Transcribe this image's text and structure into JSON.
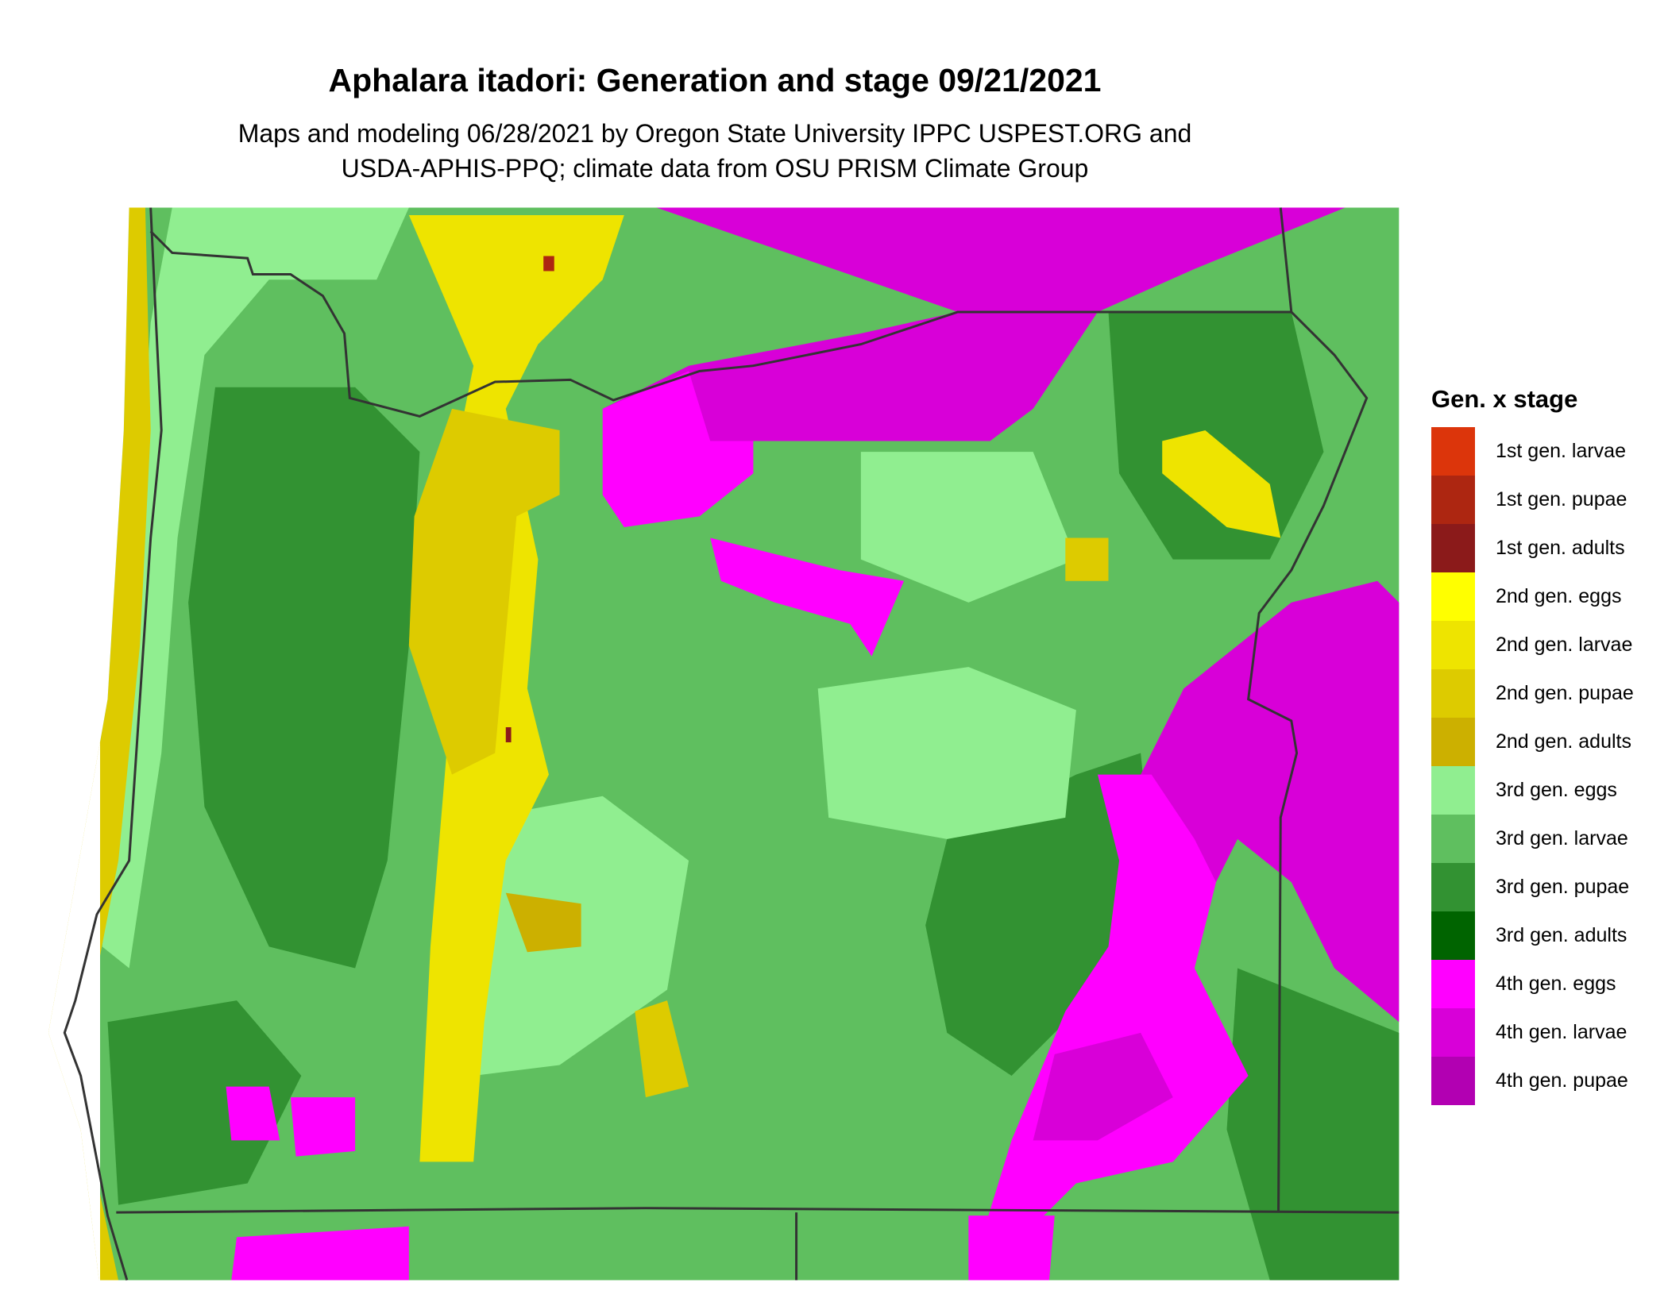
{
  "title": "Aphalara itadori: Generation and stage 09/21/2021",
  "subtitle_line1": "Maps and modeling 06/28/2021 by Oregon State University IPPC USPEST.ORG and",
  "subtitle_line2": "USDA-APHIS-PPQ; climate data from OSU PRISM Climate Group",
  "legend": {
    "title": "Gen. x stage",
    "items": [
      {
        "label": "1st gen. larvae",
        "color": "#dc350b"
      },
      {
        "label": "1st gen. pupae",
        "color": "#ad2611"
      },
      {
        "label": "1st gen. adults",
        "color": "#8b1a1a"
      },
      {
        "label": "2nd gen. eggs",
        "color": "#ffff00"
      },
      {
        "label": "2nd gen. larvae",
        "color": "#eee400"
      },
      {
        "label": "2nd gen. pupae",
        "color": "#ddcb00"
      },
      {
        "label": "2nd gen. adults",
        "color": "#ccb000"
      },
      {
        "label": "3rd gen. eggs",
        "color": "#90ee90"
      },
      {
        "label": "3rd gen. larvae",
        "color": "#5fbf5f"
      },
      {
        "label": "3rd gen. pupae",
        "color": "#329232"
      },
      {
        "label": "3rd gen. adults",
        "color": "#006400"
      },
      {
        "label": "4th gen. eggs",
        "color": "#ff00ff"
      },
      {
        "label": "4th gen. larvae",
        "color": "#d800d8"
      },
      {
        "label": "4th gen. pupae",
        "color": "#b200b2"
      }
    ]
  },
  "map": {
    "boundary_color": "#333333"
  }
}
